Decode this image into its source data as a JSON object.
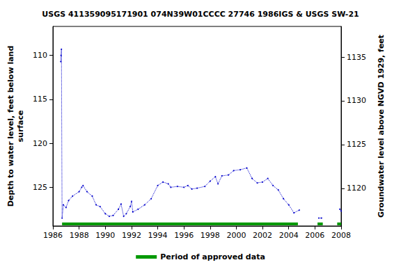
{
  "chart_data": {
    "type": "line",
    "title": "USGS 411359095171901 074N39W01CCCC 27746 1986IGS & USGS SW-21",
    "y_label": "Depth to water level, feet below land\nsurface",
    "y2_label": "Groundwater level above NGVD 1929, feet",
    "x": [
      1986.6,
      1986.62,
      1986.65,
      1986.7,
      1986.8,
      1987.0,
      1987.2,
      1987.5,
      1988.0,
      1988.2,
      1988.3,
      1988.6,
      1989.0,
      1989.3,
      1989.6,
      1990.0,
      1990.3,
      1990.6,
      1991.0,
      1991.2,
      1991.4,
      1991.6,
      1991.9,
      1992.0,
      1992.1,
      1992.5,
      1993.0,
      1993.5,
      1994.0,
      1994.4,
      1994.8,
      1995.0,
      1995.5,
      1996.0,
      1996.3,
      1996.6,
      1997.0,
      1997.6,
      1998.0,
      1998.4,
      1998.6,
      1998.9,
      1999.4,
      1999.8,
      2000.3,
      2000.8,
      2001.2,
      2001.6,
      2002.0,
      2002.4,
      2002.8,
      2003.2,
      2003.6,
      2004.0,
      2004.4,
      2004.8,
      2005.5,
      2006.3,
      2006.5,
      2007.2,
      2007.9,
      2008.0
    ],
    "series": [
      {
        "color": "#0000cc",
        "marker": "point",
        "line_style": "dotted",
        "values": [
          110.7,
          110.0,
          109.3,
          128.5,
          127.0,
          127.3,
          126.5,
          126.0,
          125.5,
          125.0,
          124.8,
          125.5,
          126.0,
          127.0,
          127.2,
          128.0,
          128.3,
          128.2,
          127.5,
          126.9,
          128.3,
          128.0,
          127.2,
          126.6,
          127.8,
          127.5,
          127.0,
          126.3,
          124.8,
          124.4,
          124.6,
          125.0,
          124.9,
          125.0,
          124.8,
          125.2,
          125.1,
          124.9,
          124.3,
          123.8,
          124.6,
          123.7,
          123.6,
          123.1,
          123.0,
          122.8,
          124.0,
          124.5,
          124.4,
          124.0,
          124.8,
          125.3,
          126.3,
          127.0,
          127.9,
          127.6,
          null,
          128.5,
          128.5,
          null,
          127.5,
          127.7
        ]
      }
    ],
    "approved_periods": {
      "name": "Period of approved data",
      "color": "#009900",
      "ranges": [
        [
          1986.7,
          2004.7
        ],
        [
          2006.2,
          2006.6
        ],
        [
          2007.7,
          2008.0
        ]
      ]
    },
    "xlim": [
      1986,
      2008
    ],
    "xticks": [
      1986,
      1988,
      1990,
      1992,
      1994,
      1996,
      1998,
      2000,
      2002,
      2004,
      2006,
      2008
    ],
    "ylim": [
      129.4,
      106.7
    ],
    "yticks": [
      110,
      115,
      120,
      125
    ],
    "y2lim": [
      1115.7,
      1138.5
    ],
    "y2ticks": [
      1120,
      1125,
      1130,
      1135
    ],
    "grid": false,
    "legend": "bottom"
  }
}
